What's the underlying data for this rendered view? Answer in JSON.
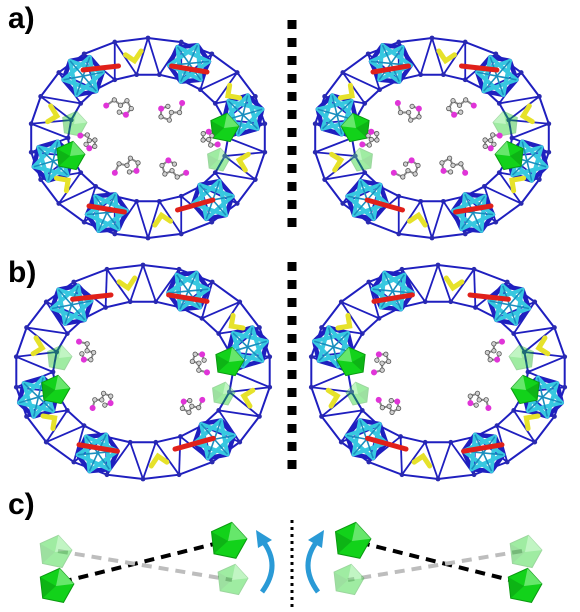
{
  "panels": {
    "a": {
      "label": "a)"
    },
    "b": {
      "label": "b)"
    },
    "c": {
      "label": "c)"
    }
  },
  "colors": {
    "frame": "#1f1fbf",
    "node": "#2a2ab0",
    "star": "#37c8e0",
    "chevron": "#e6e22a",
    "linker": "#e0201a",
    "cluster": "#12d21a",
    "ligand": "#8a8a8a",
    "oxygen": "#e034d8",
    "arrow": "#2a9ad6",
    "mirror": "#000000"
  }
}
